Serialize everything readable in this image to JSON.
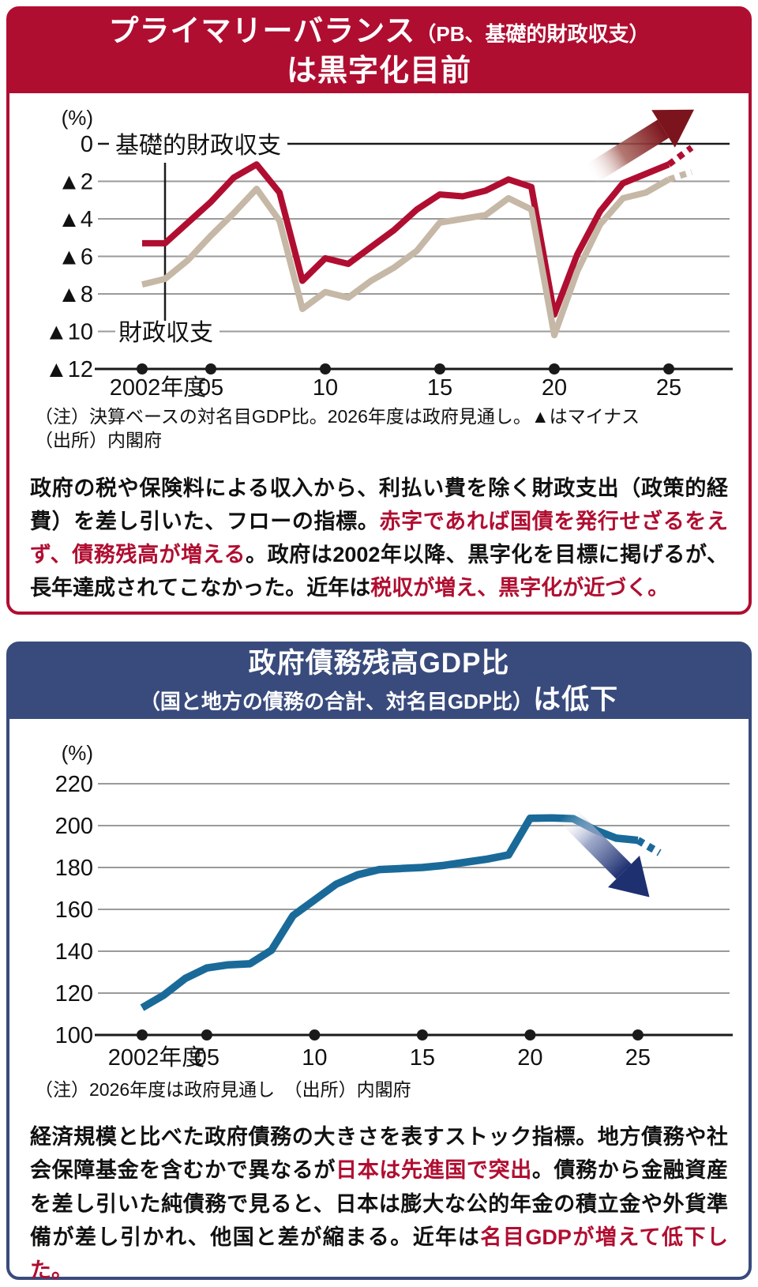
{
  "panel1": {
    "accent": "#b00e31",
    "title_main": "プライマリーバランス",
    "title_paren": "（PB、基礎的財政収支）",
    "title_line2": "は黒字化目前",
    "note_line1": "（注）決算ベースの対名目GDP比。2026年度は政府見通し。▲はマイナス",
    "note_line2": "（出所）内閣府",
    "description_segments": [
      {
        "text": "政府の税や保険料による収入から、利払い費を除く財政支出（政策的経費）を差し引いた、フローの指標。",
        "color": "black"
      },
      {
        "text": "赤字であれば国債を発行せざるをえず、債務残高が増える",
        "color": "red"
      },
      {
        "text": "。政府は2002年以降、黒字化を目標に掲げるが、長年達成されてこなかった。近年は",
        "color": "black"
      },
      {
        "text": "税収が増え、黒字化が近づく。",
        "color": "red"
      }
    ]
  },
  "panel2": {
    "accent": "#394b7d",
    "title_main": "政府債務残高GDP比",
    "title_paren": "（国と地方の債務の合計、対名目GDP比）",
    "title_suffix": "は低下",
    "note_line1": "（注）2026年度は政府見通し　（出所）内閣府",
    "description_segments": [
      {
        "text": "経済規模と比べた政府債務の大きさを表すストック指標。地方債務や社会保障基金を含むかで異なるが",
        "color": "black"
      },
      {
        "text": "日本は先進国で突出",
        "color": "red"
      },
      {
        "text": "。債務から金融資産を差し引いた純債務で見ると、日本は膨大な公的年金の積立金や外貨準備が差し引かれ、他国と差が縮まる。近年は",
        "color": "black"
      },
      {
        "text": "名目GDPが増えて低下した。",
        "color": "red"
      }
    ]
  },
  "chart_data": [
    {
      "type": "line",
      "title": "プライマリーバランス（PB、基礎的財政収支）は黒字化目前",
      "ylabel": "(%)",
      "ylim": [
        -12,
        0
      ],
      "grid": true,
      "legend_position": "inline",
      "yticks": [
        0,
        -2,
        -4,
        -6,
        -8,
        -10,
        -12
      ],
      "ytick_labels": [
        "0",
        "▲2",
        "▲4",
        "▲6",
        "▲8",
        "▲10",
        "▲12"
      ],
      "xtick_years": [
        2002,
        2005,
        2010,
        2015,
        2020,
        2025
      ],
      "xtick_labels": [
        "2002年度",
        "05",
        "10",
        "15",
        "20",
        "25"
      ],
      "x": [
        2002,
        2003,
        2004,
        2005,
        2006,
        2007,
        2008,
        2009,
        2010,
        2011,
        2012,
        2013,
        2014,
        2015,
        2016,
        2017,
        2018,
        2019,
        2020,
        2021,
        2022,
        2023,
        2024,
        2025,
        2026
      ],
      "forecast_from_year": 2025,
      "series": [
        {
          "name": "基礎的財政収支",
          "color": "#b00e31",
          "values": [
            -5.3,
            -5.3,
            -4.2,
            -3.1,
            -1.8,
            -1.1,
            -2.6,
            -7.3,
            -6.1,
            -6.4,
            -5.5,
            -4.6,
            -3.5,
            -2.7,
            -2.8,
            -2.5,
            -1.9,
            -2.3,
            -9.1,
            -5.9,
            -3.6,
            -2.1,
            -1.6,
            -1.1,
            -0.2
          ]
        },
        {
          "name": "財政収支",
          "color": "#c6b8a6",
          "values": [
            -7.5,
            -7.2,
            -6.2,
            -4.9,
            -3.7,
            -2.4,
            -4.1,
            -8.8,
            -7.9,
            -8.2,
            -7.3,
            -6.6,
            -5.7,
            -4.2,
            -4.0,
            -3.8,
            -2.9,
            -3.5,
            -10.2,
            -6.8,
            -4.3,
            -2.9,
            -2.6,
            -1.9,
            -1.5
          ]
        }
      ],
      "annotation_arrow": "up-right"
    },
    {
      "type": "line",
      "title": "政府債務残高GDP比（国と地方の債務の合計、対名目GDP比）は低下",
      "ylabel": "(%)",
      "ylim": [
        100,
        220
      ],
      "grid": true,
      "yticks": [
        220,
        200,
        180,
        160,
        140,
        120,
        100
      ],
      "ytick_labels": [
        "220",
        "200",
        "180",
        "160",
        "140",
        "120",
        "100"
      ],
      "xtick_years": [
        2002,
        2005,
        2010,
        2015,
        2020,
        2025
      ],
      "xtick_labels": [
        "2002年度",
        "05",
        "10",
        "15",
        "20",
        "25"
      ],
      "x": [
        2002,
        2003,
        2004,
        2005,
        2006,
        2007,
        2008,
        2009,
        2010,
        2011,
        2012,
        2013,
        2014,
        2015,
        2016,
        2017,
        2018,
        2019,
        2020,
        2021,
        2022,
        2023,
        2024,
        2025,
        2026
      ],
      "forecast_from_year": 2025,
      "series": [
        {
          "name": "政府債務残高GDP比",
          "color": "#1a6a99",
          "values": [
            113,
            119,
            127,
            132,
            133.5,
            134,
            140.5,
            157,
            164.5,
            172,
            176.5,
            179,
            179.5,
            180,
            181,
            182.5,
            184,
            186,
            203.5,
            203.7,
            203.3,
            198,
            194,
            193,
            187
          ]
        }
      ],
      "annotation_arrow": "down-right"
    }
  ]
}
